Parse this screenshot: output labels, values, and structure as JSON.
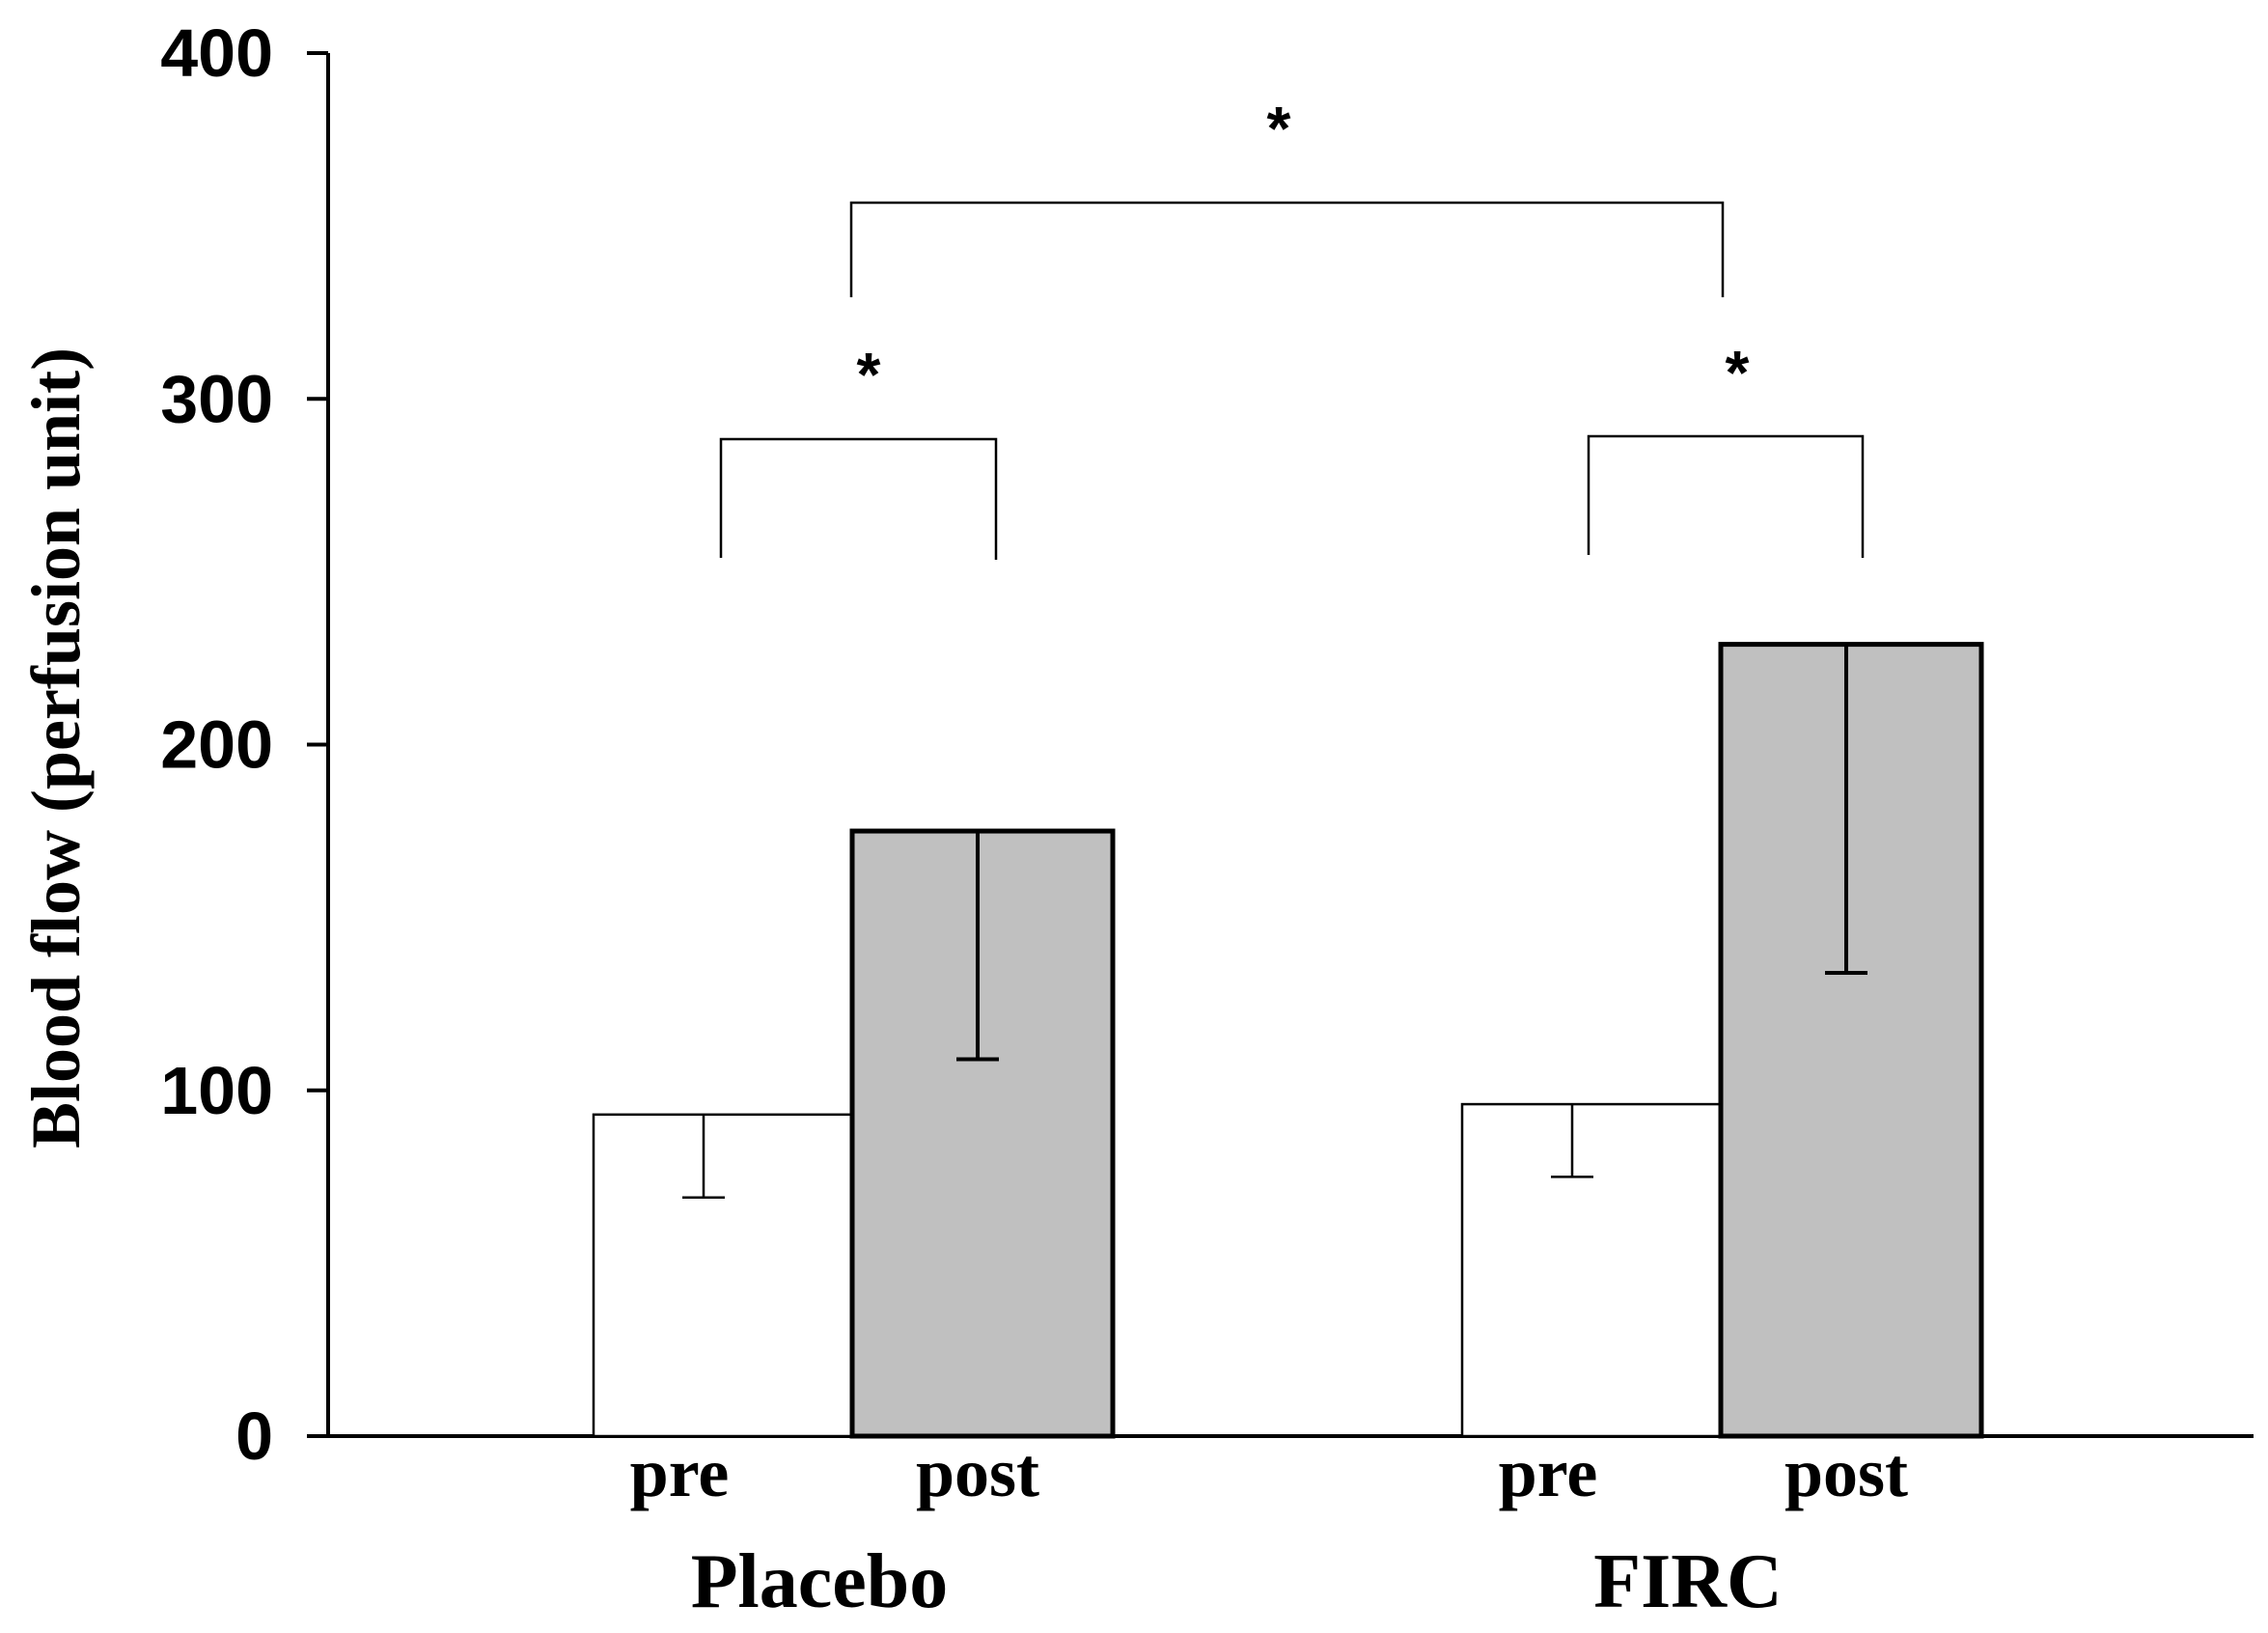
{
  "chart_data": {
    "type": "bar",
    "ylabel": "Blood flow (perfusion unit)",
    "ylim": [
      0,
      400
    ],
    "yticks": [
      "0",
      "100",
      "200",
      "300",
      "400"
    ],
    "groups": [
      {
        "label": "Placebo",
        "bars": [
          {
            "label": "pre",
            "value": 93,
            "error": 24,
            "fill": "#ffffff"
          },
          {
            "label": "post",
            "value": 175,
            "error": 66,
            "fill": "#c0c0c0"
          }
        ]
      },
      {
        "label": "FIRC",
        "bars": [
          {
            "label": "pre",
            "value": 96,
            "error": 21,
            "fill": "#ffffff"
          },
          {
            "label": "post",
            "value": 229,
            "error": 95,
            "fill": "#c0c0c0"
          }
        ]
      }
    ],
    "significance": [
      {
        "text": "*",
        "between": "Placebo pre vs Placebo post"
      },
      {
        "text": "*",
        "between": "FIRC pre vs FIRC post"
      },
      {
        "text": "*",
        "between": "Placebo vs FIRC"
      }
    ],
    "grid": false,
    "legend": "none"
  }
}
